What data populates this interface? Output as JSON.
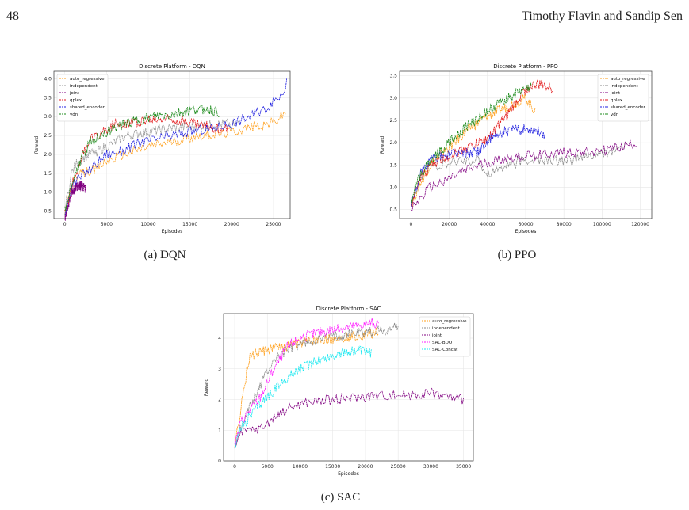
{
  "header": {
    "page_number": "48",
    "running_head": "Timothy Flavin and Sandip Sen"
  },
  "captions": {
    "a": "(a) DQN",
    "b": "(b) PPO",
    "c": "(c) SAC"
  },
  "chart_data": [
    {
      "id": "a",
      "type": "line",
      "title": "Discrete Platform - DQN",
      "xlabel": "Episodes",
      "ylabel": "Reward",
      "xlim": [
        -1300,
        27000
      ],
      "ylim": [
        0.3,
        4.2
      ],
      "xticks": [
        0,
        5000,
        10000,
        15000,
        20000,
        25000
      ],
      "yticks": [
        0.5,
        1.0,
        1.5,
        2.0,
        2.5,
        3.0,
        3.5,
        4.0
      ],
      "grid": true,
      "legend_position": "top-left",
      "series": [
        {
          "name": "auto_regressive",
          "color": "#ff9f1a",
          "points": [
            [
              0,
              0.4
            ],
            [
              800,
              1.2
            ],
            [
              2000,
              1.5
            ],
            [
              3500,
              1.6
            ],
            [
              5000,
              1.8
            ],
            [
              7000,
              2.0
            ],
            [
              10000,
              2.2
            ],
            [
              13000,
              2.35
            ],
            [
              16000,
              2.5
            ],
            [
              19000,
              2.55
            ],
            [
              22000,
              2.7
            ],
            [
              25000,
              2.85
            ],
            [
              26500,
              3.1
            ]
          ]
        },
        {
          "name": "independent",
          "color": "#999999",
          "points": [
            [
              0,
              0.5
            ],
            [
              800,
              1.5
            ],
            [
              1500,
              1.8
            ],
            [
              3000,
              2.0
            ],
            [
              5000,
              2.2
            ],
            [
              7500,
              2.5
            ],
            [
              10000,
              2.6
            ],
            [
              13000,
              2.7
            ],
            [
              16000,
              2.75
            ],
            [
              19000,
              2.8
            ],
            [
              21000,
              2.8
            ]
          ]
        },
        {
          "name": "joint",
          "color": "#800080",
          "points": [
            [
              0,
              0.3
            ],
            [
              800,
              1.0
            ],
            [
              1600,
              1.2
            ],
            [
              2500,
              1.1
            ]
          ]
        },
        {
          "name": "qplex",
          "color": "#e31a1c",
          "points": [
            [
              0,
              0.4
            ],
            [
              1000,
              1.3
            ],
            [
              2000,
              1.9
            ],
            [
              3000,
              2.4
            ],
            [
              4500,
              2.6
            ],
            [
              6000,
              2.8
            ],
            [
              8000,
              2.85
            ],
            [
              10000,
              2.9
            ],
            [
              12000,
              2.95
            ],
            [
              14000,
              2.9
            ],
            [
              16000,
              2.8
            ],
            [
              18000,
              2.7
            ],
            [
              19500,
              2.65
            ]
          ]
        },
        {
          "name": "shared_encoder",
          "color": "#1f1fe0",
          "points": [
            [
              0,
              0.4
            ],
            [
              800,
              1.2
            ],
            [
              2000,
              1.4
            ],
            [
              3500,
              1.7
            ],
            [
              5000,
              2.0
            ],
            [
              7000,
              2.1
            ],
            [
              9000,
              2.3
            ],
            [
              12000,
              2.45
            ],
            [
              15000,
              2.6
            ],
            [
              18000,
              2.7
            ],
            [
              21000,
              2.9
            ],
            [
              24000,
              3.2
            ],
            [
              26000,
              3.6
            ],
            [
              26600,
              3.9
            ]
          ]
        },
        {
          "name": "vdn",
          "color": "#1a8a1a",
          "points": [
            [
              0,
              0.5
            ],
            [
              1000,
              1.3
            ],
            [
              2000,
              1.9
            ],
            [
              3000,
              2.3
            ],
            [
              5000,
              2.6
            ],
            [
              7000,
              2.8
            ],
            [
              9000,
              2.9
            ],
            [
              11000,
              3.0
            ],
            [
              13000,
              3.05
            ],
            [
              15000,
              3.15
            ],
            [
              17000,
              3.2
            ],
            [
              18500,
              3.1
            ]
          ]
        }
      ]
    },
    {
      "id": "b",
      "type": "line",
      "title": "Discrete Platform - PPO",
      "xlabel": "Episodes",
      "ylabel": "Reward",
      "xlim": [
        -6000,
        126000
      ],
      "ylim": [
        0.3,
        3.6
      ],
      "xticks": [
        0,
        20000,
        40000,
        60000,
        80000,
        100000,
        120000
      ],
      "yticks": [
        0.5,
        1.0,
        1.5,
        2.0,
        2.5,
        3.0,
        3.5
      ],
      "grid": true,
      "legend_position": "top-right",
      "series": [
        {
          "name": "auto_regressive",
          "color": "#ff9f1a",
          "points": [
            [
              0,
              0.6
            ],
            [
              5000,
              1.1
            ],
            [
              10000,
              1.5
            ],
            [
              20000,
              1.9
            ],
            [
              30000,
              2.3
            ],
            [
              40000,
              2.6
            ],
            [
              50000,
              2.8
            ],
            [
              55000,
              2.9
            ],
            [
              60000,
              3.0
            ],
            [
              65000,
              2.7
            ]
          ]
        },
        {
          "name": "independent",
          "color": "#888888",
          "points": [
            [
              0,
              0.6
            ],
            [
              5000,
              1.2
            ],
            [
              10000,
              1.5
            ],
            [
              15000,
              1.5
            ],
            [
              20000,
              1.5
            ],
            [
              25000,
              1.6
            ],
            [
              35000,
              1.6
            ],
            [
              40000,
              1.3
            ],
            [
              50000,
              1.5
            ],
            [
              60000,
              1.6
            ],
            [
              70000,
              1.6
            ],
            [
              80000,
              1.6
            ],
            [
              95000,
              1.7
            ],
            [
              105000,
              1.8
            ],
            [
              112000,
              1.9
            ]
          ]
        },
        {
          "name": "joint",
          "color": "#800080",
          "points": [
            [
              0,
              0.5
            ],
            [
              10000,
              1.0
            ],
            [
              20000,
              1.2
            ],
            [
              30000,
              1.4
            ],
            [
              40000,
              1.55
            ],
            [
              50000,
              1.65
            ],
            [
              60000,
              1.7
            ],
            [
              70000,
              1.75
            ],
            [
              80000,
              1.78
            ],
            [
              90000,
              1.8
            ],
            [
              100000,
              1.82
            ],
            [
              110000,
              1.9
            ],
            [
              118000,
              2.0
            ]
          ]
        },
        {
          "name": "qplex",
          "color": "#e31a1c",
          "points": [
            [
              0,
              0.6
            ],
            [
              5000,
              1.2
            ],
            [
              10000,
              1.5
            ],
            [
              20000,
              1.7
            ],
            [
              30000,
              1.9
            ],
            [
              40000,
              2.1
            ],
            [
              50000,
              2.6
            ],
            [
              55000,
              2.9
            ],
            [
              60000,
              3.2
            ],
            [
              65000,
              3.3
            ],
            [
              70000,
              3.3
            ],
            [
              74000,
              3.2
            ]
          ]
        },
        {
          "name": "shared_encoder",
          "color": "#1f1fe0",
          "points": [
            [
              0,
              0.6
            ],
            [
              5000,
              1.3
            ],
            [
              10000,
              1.6
            ],
            [
              15000,
              1.7
            ],
            [
              25000,
              1.75
            ],
            [
              35000,
              1.8
            ],
            [
              40000,
              2.0
            ],
            [
              45000,
              2.2
            ],
            [
              55000,
              2.3
            ],
            [
              65000,
              2.3
            ],
            [
              70000,
              2.2
            ]
          ]
        },
        {
          "name": "vdn",
          "color": "#1a8a1a",
          "points": [
            [
              0,
              0.7
            ],
            [
              5000,
              1.3
            ],
            [
              10000,
              1.6
            ],
            [
              20000,
              2.0
            ],
            [
              30000,
              2.4
            ],
            [
              40000,
              2.7
            ],
            [
              50000,
              3.0
            ],
            [
              60000,
              3.2
            ],
            [
              63000,
              3.25
            ]
          ]
        }
      ]
    },
    {
      "id": "c",
      "type": "line",
      "title": "Discrete Platform - SAC",
      "xlabel": "Episodes",
      "ylabel": "Reward",
      "xlim": [
        -1700,
        36500
      ],
      "ylim": [
        0,
        4.8
      ],
      "xticks": [
        0,
        5000,
        10000,
        15000,
        20000,
        25000,
        30000,
        35000
      ],
      "yticks": [
        0,
        1,
        2,
        3,
        4
      ],
      "grid": true,
      "legend_position": "top-right",
      "series": [
        {
          "name": "auto_regressive",
          "color": "#ff9f1a",
          "points": [
            [
              0,
              0.5
            ],
            [
              800,
              1.5
            ],
            [
              1500,
              2.5
            ],
            [
              2300,
              3.4
            ],
            [
              3000,
              3.5
            ],
            [
              5000,
              3.6
            ],
            [
              8000,
              3.75
            ],
            [
              12000,
              3.9
            ],
            [
              16000,
              4.0
            ],
            [
              20000,
              4.1
            ],
            [
              22000,
              4.2
            ]
          ]
        },
        {
          "name": "independent",
          "color": "#888888",
          "points": [
            [
              0,
              0.5
            ],
            [
              1000,
              1.2
            ],
            [
              2500,
              1.8
            ],
            [
              4000,
              2.5
            ],
            [
              6000,
              3.3
            ],
            [
              8000,
              3.6
            ],
            [
              10000,
              3.8
            ],
            [
              13000,
              3.95
            ],
            [
              16000,
              4.1
            ],
            [
              20000,
              4.2
            ],
            [
              24000,
              4.3
            ],
            [
              25000,
              4.4
            ]
          ]
        },
        {
          "name": "joint",
          "color": "#800080",
          "points": [
            [
              0,
              0.5
            ],
            [
              1000,
              0.9
            ],
            [
              2500,
              1.0
            ],
            [
              4000,
              1.05
            ],
            [
              6000,
              1.4
            ],
            [
              8000,
              1.7
            ],
            [
              11000,
              1.9
            ],
            [
              15000,
              2.0
            ],
            [
              20000,
              2.1
            ],
            [
              25000,
              2.15
            ],
            [
              30000,
              2.2
            ],
            [
              35000,
              2.0
            ]
          ]
        },
        {
          "name": "SAC-BDO",
          "color": "#ff1aff",
          "points": [
            [
              0,
              0.5
            ],
            [
              1000,
              1.3
            ],
            [
              2500,
              1.7
            ],
            [
              4000,
              2.1
            ],
            [
              6000,
              3.0
            ],
            [
              8000,
              3.7
            ],
            [
              10000,
              4.0
            ],
            [
              13000,
              4.2
            ],
            [
              16000,
              4.3
            ],
            [
              19000,
              4.4
            ],
            [
              21000,
              4.5
            ],
            [
              22000,
              4.4
            ]
          ]
        },
        {
          "name": "SAC-Concat",
          "color": "#1ae8f0",
          "points": [
            [
              0,
              0.5
            ],
            [
              1000,
              1.1
            ],
            [
              2500,
              1.5
            ],
            [
              4000,
              1.9
            ],
            [
              6000,
              2.3
            ],
            [
              8000,
              2.7
            ],
            [
              10000,
              3.0
            ],
            [
              13000,
              3.3
            ],
            [
              16000,
              3.5
            ],
            [
              19000,
              3.6
            ],
            [
              21000,
              3.5
            ]
          ]
        }
      ]
    }
  ]
}
